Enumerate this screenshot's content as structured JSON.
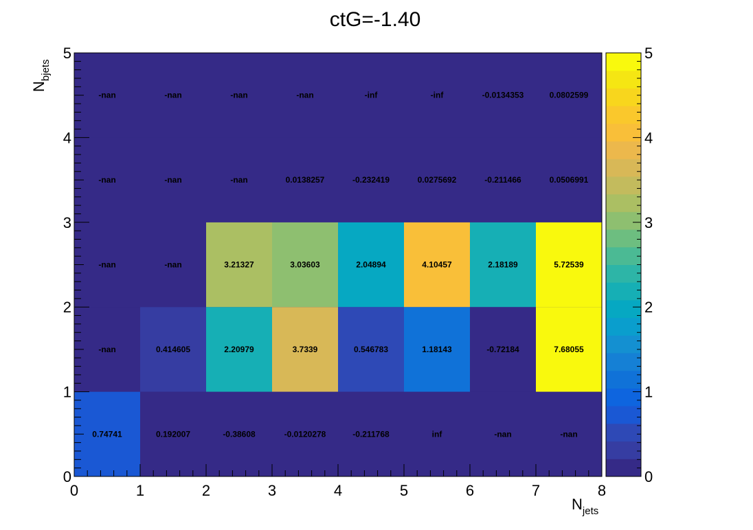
{
  "chart_data": {
    "type": "heatmap",
    "title": "ctG=-1.40",
    "xlabel": {
      "main": "N",
      "sub": "jets"
    },
    "ylabel": {
      "main": "N",
      "sub": "bjets"
    },
    "x_bins": [
      0,
      1,
      2,
      3,
      4,
      5,
      6,
      7,
      8
    ],
    "y_bins": [
      0,
      1,
      2,
      3,
      4,
      5
    ],
    "xlim": [
      0,
      8
    ],
    "ylim": [
      0,
      5
    ],
    "x_ticks": [
      "0",
      "1",
      "2",
      "3",
      "4",
      "5",
      "6",
      "7",
      "8"
    ],
    "y_ticks": [
      "0",
      "1",
      "2",
      "3",
      "4",
      "5"
    ],
    "zlim": [
      0,
      5
    ],
    "z_ticks": [
      "0",
      "1",
      "2",
      "3",
      "4",
      "5"
    ],
    "colorscale": "parula",
    "cells": [
      {
        "x": 0.5,
        "y": 0.5,
        "value": 0.74741,
        "label": "0.74741"
      },
      {
        "x": 1.5,
        "y": 0.5,
        "value": 0.192007,
        "label": "0.192007"
      },
      {
        "x": 2.5,
        "y": 0.5,
        "value": -0.38608,
        "label": "-0.38608"
      },
      {
        "x": 3.5,
        "y": 0.5,
        "value": -0.0120278,
        "label": "-0.0120278"
      },
      {
        "x": 4.5,
        "y": 0.5,
        "value": -0.211768,
        "label": "-0.211768"
      },
      {
        "x": 5.5,
        "y": 0.5,
        "value": null,
        "label": "inf"
      },
      {
        "x": 6.5,
        "y": 0.5,
        "value": null,
        "label": "-nan"
      },
      {
        "x": 7.5,
        "y": 0.5,
        "value": null,
        "label": "-nan"
      },
      {
        "x": 0.5,
        "y": 1.5,
        "value": null,
        "label": "-nan"
      },
      {
        "x": 1.5,
        "y": 1.5,
        "value": 0.414605,
        "label": "0.414605"
      },
      {
        "x": 2.5,
        "y": 1.5,
        "value": 2.20979,
        "label": "2.20979"
      },
      {
        "x": 3.5,
        "y": 1.5,
        "value": 3.7339,
        "label": "3.7339"
      },
      {
        "x": 4.5,
        "y": 1.5,
        "value": 0.546783,
        "label": "0.546783"
      },
      {
        "x": 5.5,
        "y": 1.5,
        "value": 1.18143,
        "label": "1.18143"
      },
      {
        "x": 6.5,
        "y": 1.5,
        "value": -0.72184,
        "label": "-0.72184"
      },
      {
        "x": 7.5,
        "y": 1.5,
        "value": 7.68055,
        "label": "7.68055"
      },
      {
        "x": 0.5,
        "y": 2.5,
        "value": null,
        "label": "-nan"
      },
      {
        "x": 1.5,
        "y": 2.5,
        "value": null,
        "label": "-nan"
      },
      {
        "x": 2.5,
        "y": 2.5,
        "value": 3.21327,
        "label": "3.21327"
      },
      {
        "x": 3.5,
        "y": 2.5,
        "value": 3.03603,
        "label": "3.03603"
      },
      {
        "x": 4.5,
        "y": 2.5,
        "value": 2.04894,
        "label": "2.04894"
      },
      {
        "x": 5.5,
        "y": 2.5,
        "value": 4.10457,
        "label": "4.10457"
      },
      {
        "x": 6.5,
        "y": 2.5,
        "value": 2.18189,
        "label": "2.18189"
      },
      {
        "x": 7.5,
        "y": 2.5,
        "value": 5.72539,
        "label": "5.72539"
      },
      {
        "x": 0.5,
        "y": 3.5,
        "value": null,
        "label": "-nan"
      },
      {
        "x": 1.5,
        "y": 3.5,
        "value": null,
        "label": "-nan"
      },
      {
        "x": 2.5,
        "y": 3.5,
        "value": null,
        "label": "-nan"
      },
      {
        "x": 3.5,
        "y": 3.5,
        "value": 0.0138257,
        "label": "0.0138257"
      },
      {
        "x": 4.5,
        "y": 3.5,
        "value": -0.232419,
        "label": "-0.232419"
      },
      {
        "x": 5.5,
        "y": 3.5,
        "value": 0.0275692,
        "label": "0.0275692"
      },
      {
        "x": 6.5,
        "y": 3.5,
        "value": -0.211466,
        "label": "-0.211466"
      },
      {
        "x": 7.5,
        "y": 3.5,
        "value": 0.0506991,
        "label": "0.0506991"
      },
      {
        "x": 0.5,
        "y": 4.5,
        "value": null,
        "label": "-nan"
      },
      {
        "x": 1.5,
        "y": 4.5,
        "value": null,
        "label": "-nan"
      },
      {
        "x": 2.5,
        "y": 4.5,
        "value": null,
        "label": "-nan"
      },
      {
        "x": 3.5,
        "y": 4.5,
        "value": null,
        "label": "-nan"
      },
      {
        "x": 4.5,
        "y": 4.5,
        "value": null,
        "label": "-inf"
      },
      {
        "x": 5.5,
        "y": 4.5,
        "value": null,
        "label": "-inf"
      },
      {
        "x": 6.5,
        "y": 4.5,
        "value": -0.0134353,
        "label": "-0.0134353"
      },
      {
        "x": 7.5,
        "y": 4.5,
        "value": 0.0802599,
        "label": "0.0802599"
      }
    ]
  }
}
